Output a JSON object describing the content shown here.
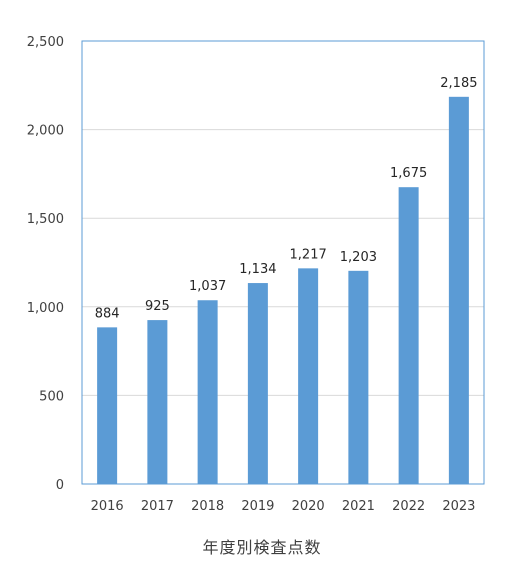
{
  "chart_data": {
    "type": "bar",
    "categories": [
      "2016",
      "2017",
      "2018",
      "2019",
      "2020",
      "2021",
      "2022",
      "2023"
    ],
    "values": [
      884,
      925,
      1037,
      1134,
      1217,
      1203,
      1675,
      2185
    ],
    "data_labels": [
      "884",
      "925",
      "1,037",
      "1,134",
      "1,217",
      "1,203",
      "1,675",
      "2,185"
    ],
    "ylim": [
      0,
      2500
    ],
    "yticks": [
      0,
      500,
      1000,
      1500,
      2000,
      2500
    ],
    "ytick_labels": [
      "0",
      "500",
      "1,000",
      "1,500",
      "2,000",
      "2,500"
    ],
    "xlabel": "年度別検査点数",
    "bar_color": "#5b9bd5",
    "frame_color": "#5b9bd5",
    "grid": true
  }
}
